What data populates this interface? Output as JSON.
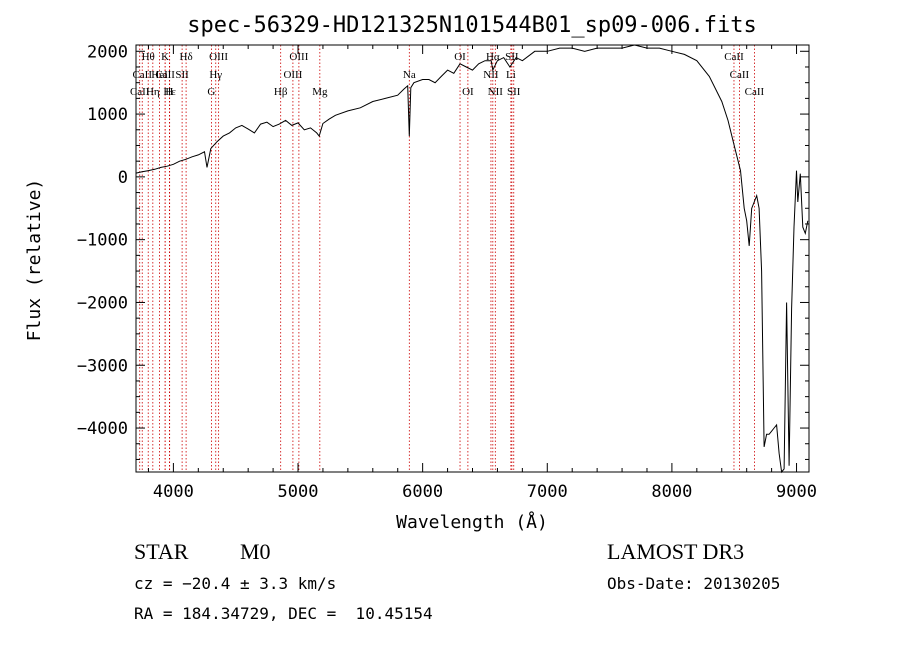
{
  "chart_data": {
    "type": "line",
    "title": "spec-56329-HD121325N101544B01_sp09-006.fits",
    "xlabel": "Wavelength (Å)",
    "ylabel": "Flux (relative)",
    "xlim": [
      3700,
      9100
    ],
    "ylim": [
      -4700,
      2100
    ],
    "xticks": [
      4000,
      5000,
      6000,
      7000,
      8000,
      9000
    ],
    "xtick_labels": [
      "4000",
      "5000",
      "6000",
      "7000",
      "8000",
      "9000"
    ],
    "yticks": [
      -4000,
      -3000,
      -2000,
      -1000,
      0,
      1000,
      2000
    ],
    "ytick_labels": [
      "−4000",
      "−3000",
      "−2000",
      "−1000",
      "0",
      "1000",
      "2000"
    ],
    "grid": false,
    "series": [
      {
        "name": "spectrum",
        "x": [
          3700,
          3750,
          3800,
          3850,
          3900,
          3950,
          4000,
          4050,
          4100,
          4150,
          4200,
          4250,
          4270,
          4300,
          4350,
          4400,
          4450,
          4500,
          4550,
          4600,
          4650,
          4700,
          4750,
          4800,
          4850,
          4900,
          4950,
          5000,
          5050,
          5100,
          5150,
          5170,
          5200,
          5250,
          5300,
          5400,
          5500,
          5600,
          5700,
          5800,
          5850,
          5880,
          5893,
          5905,
          5930,
          6000,
          6050,
          6100,
          6150,
          6200,
          6250,
          6300,
          6350,
          6400,
          6450,
          6500,
          6550,
          6563,
          6600,
          6650,
          6700,
          6750,
          6800,
          6900,
          7000,
          7100,
          7200,
          7300,
          7400,
          7500,
          7600,
          7700,
          7800,
          7900,
          8000,
          8100,
          8200,
          8300,
          8400,
          8450,
          8500,
          8550,
          8580,
          8600,
          8620,
          8640,
          8660,
          8680,
          8700,
          8720,
          8740,
          8760,
          8780,
          8800,
          8820,
          8840,
          8860,
          8880,
          8900,
          8920,
          8940,
          8960,
          8980,
          9000,
          9010,
          9030,
          9050,
          9070,
          9090
        ],
        "y": [
          60,
          80,
          100,
          120,
          150,
          170,
          200,
          250,
          280,
          320,
          350,
          400,
          150,
          450,
          560,
          650,
          700,
          780,
          820,
          760,
          700,
          840,
          870,
          800,
          840,
          900,
          820,
          860,
          750,
          780,
          700,
          650,
          850,
          920,
          980,
          1050,
          1100,
          1200,
          1250,
          1300,
          1400,
          1450,
          650,
          1420,
          1500,
          1550,
          1550,
          1500,
          1600,
          1700,
          1650,
          1800,
          1750,
          1700,
          1800,
          1850,
          1850,
          1700,
          1850,
          1900,
          1750,
          1900,
          1850,
          2000,
          2000,
          2050,
          2050,
          2000,
          2050,
          2050,
          2050,
          2100,
          2050,
          2050,
          2000,
          1950,
          1850,
          1600,
          1200,
          900,
          500,
          100,
          -500,
          -700,
          -1100,
          -500,
          -400,
          -300,
          -500,
          -1500,
          -4300,
          -4100,
          -4100,
          -4050,
          -4000,
          -3950,
          -4400,
          -4700,
          -4650,
          -2000,
          -4600,
          -2100,
          -800,
          100,
          -400,
          50,
          -800,
          -900,
          -700
        ]
      }
    ],
    "line_markers": [
      {
        "name": "CaII",
        "x": 3934,
        "row": 2
      },
      {
        "name": "Hε",
        "x": 3970,
        "row": 3
      },
      {
        "name": "Hθ",
        "x": 3798,
        "row": 1
      },
      {
        "name": "CaII",
        "x": 3750,
        "row": 2
      },
      {
        "name": "Hη",
        "x": 3835,
        "row": 3
      },
      {
        "name": "CaII",
        "x": 3730,
        "row": 3
      },
      {
        "name": "HeI",
        "x": 3889,
        "row": 2
      },
      {
        "name": "K",
        "x": 3934,
        "row": 1
      },
      {
        "name": "H",
        "x": 3968,
        "row": 3
      },
      {
        "name": "SII",
        "x": 4070,
        "row": 2
      },
      {
        "name": "Hδ",
        "x": 4102,
        "row": 1
      },
      {
        "name": "G",
        "x": 4305,
        "row": 3
      },
      {
        "name": "Hγ",
        "x": 4340,
        "row": 2
      },
      {
        "name": "OIII",
        "x": 4363,
        "row": 1
      },
      {
        "name": "Hβ",
        "x": 4861,
        "row": 3
      },
      {
        "name": "OIII",
        "x": 4959,
        "row": 2
      },
      {
        "name": "OIII",
        "x": 5007,
        "row": 1
      },
      {
        "name": "Mg",
        "x": 5175,
        "row": 3
      },
      {
        "name": "Na",
        "x": 5893,
        "row": 2
      },
      {
        "name": "OI",
        "x": 6300,
        "row": 1
      },
      {
        "name": "OI",
        "x": 6363,
        "row": 3
      },
      {
        "name": "Hα",
        "x": 6563,
        "row": 1
      },
      {
        "name": "NII",
        "x": 6548,
        "row": 2
      },
      {
        "name": "NII",
        "x": 6583,
        "row": 3
      },
      {
        "name": "SII",
        "x": 6716,
        "row": 1
      },
      {
        "name": "Li",
        "x": 6708,
        "row": 2
      },
      {
        "name": "SII",
        "x": 6731,
        "row": 3
      },
      {
        "name": "CaII",
        "x": 8498,
        "row": 1
      },
      {
        "name": "CaII",
        "x": 8542,
        "row": 2
      },
      {
        "name": "CaII",
        "x": 8662,
        "row": 3
      }
    ]
  },
  "info": {
    "class_label": "STAR",
    "subclass": "M0",
    "survey": "LAMOST DR3",
    "redshift_text": "cz = −20.4 ± 3.3 km/s",
    "obs_date": "Obs-Date: 20130205",
    "coords": "RA = 184.34729, DEC =  10.45154"
  },
  "colors": {
    "line": "#000000",
    "marker": "#cc0000",
    "axis": "#000000"
  }
}
